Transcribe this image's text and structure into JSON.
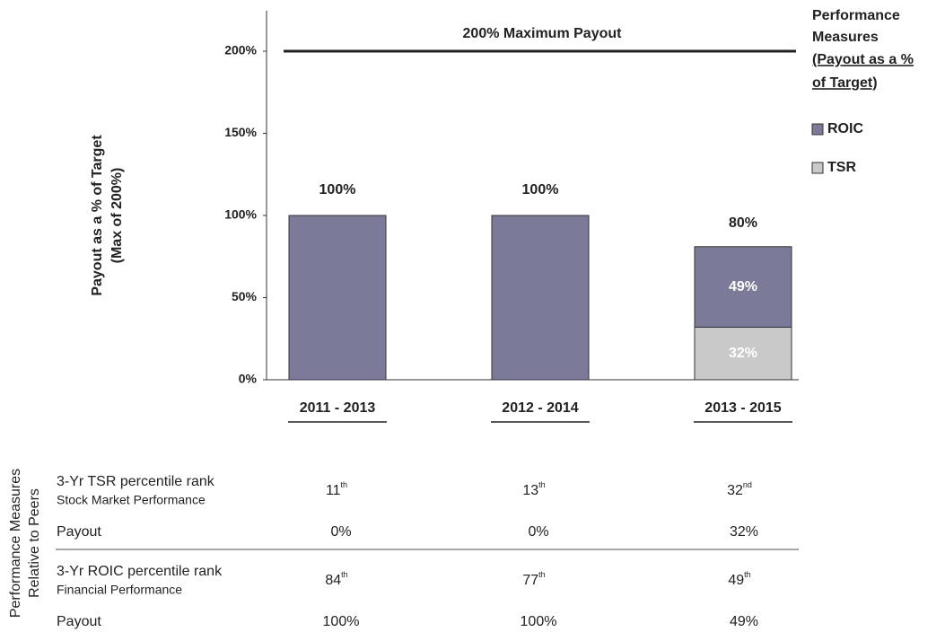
{
  "chart_data": {
    "type": "stacked_bar",
    "ylabel": [
      "Payout as a % of Target",
      "(Max of 200%)"
    ],
    "categories": [
      "2011 - 2013",
      "2012 - 2014",
      "2013 - 2015"
    ],
    "series": [
      {
        "name": "TSR",
        "color": "#c9c9c9",
        "values": [
          0,
          0,
          32
        ],
        "value_labels": [
          null,
          null,
          "32%"
        ]
      },
      {
        "name": "ROIC",
        "color": "#7b7b99",
        "values": [
          100,
          100,
          49
        ],
        "value_labels": [
          null,
          null,
          "49%"
        ]
      }
    ],
    "totals": {
      "values": [
        100,
        100,
        80
      ],
      "value_labels": [
        "100%",
        "100%",
        "80%"
      ]
    },
    "max_line": {
      "value": 200,
      "label": "200% Maximum Payout"
    },
    "ylim": [
      0,
      200
    ],
    "yticks": [
      {
        "value": 0,
        "label": "0%"
      },
      {
        "value": 50,
        "label": "50%"
      },
      {
        "value": 100,
        "label": "100%"
      },
      {
        "value": 150,
        "label": "150%"
      },
      {
        "value": 200,
        "label": "200%"
      }
    ],
    "legend_title": [
      "Performance",
      "Measures"
    ],
    "legend_subtitle": [
      "(Payout as a %",
      "of Target)"
    ]
  },
  "table": {
    "side_label": [
      "Performance Measures",
      "Relative to Peers"
    ],
    "groups": [
      {
        "label": "3-Yr TSR percentile rank",
        "sublabel": "Stock Market Performance",
        "ranks": [
          {
            "text": "11",
            "sup": "th"
          },
          {
            "text": "13",
            "sup": "th"
          },
          {
            "text": "32",
            "sup": "nd"
          }
        ],
        "payout_label": "Payout",
        "payouts": [
          "0%",
          "0%",
          "32%"
        ]
      },
      {
        "label": "3-Yr ROIC percentile rank",
        "sublabel": "Financial Performance",
        "ranks": [
          {
            "text": "84",
            "sup": "th"
          },
          {
            "text": "77",
            "sup": "th"
          },
          {
            "text": "49",
            "sup": "th"
          }
        ],
        "payout_label": "Payout",
        "payouts": [
          "100%",
          "100%",
          "49%"
        ]
      }
    ]
  }
}
